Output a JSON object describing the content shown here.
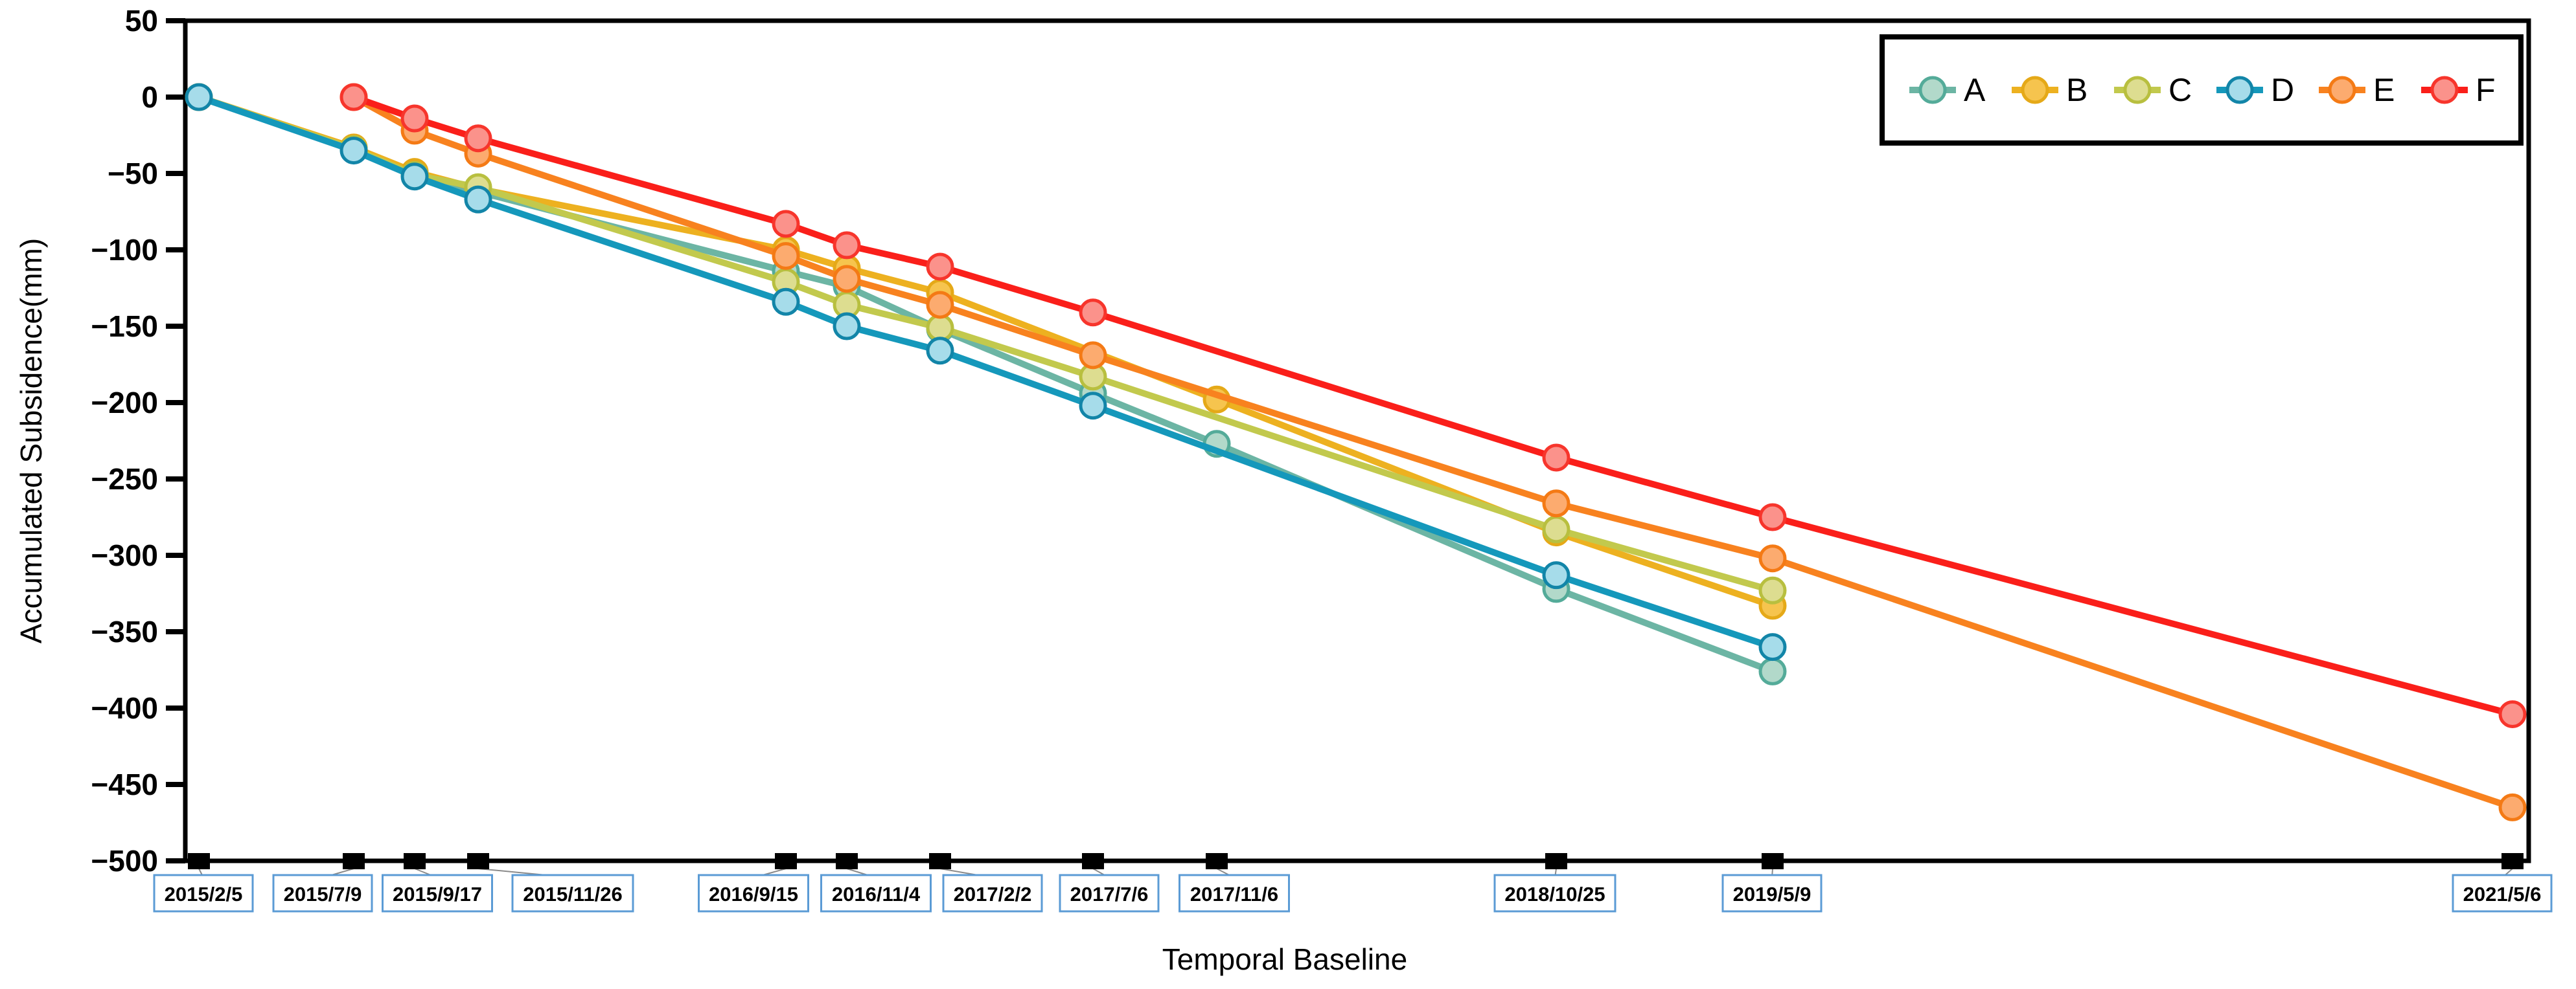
{
  "chart_data": {
    "type": "line",
    "title": "",
    "xlabel": "Temporal Baseline",
    "ylabel": "Accumulated Subsidence(mm)",
    "ylim": [
      -500,
      50
    ],
    "ytick_step": 50,
    "yticks": [
      50,
      0,
      -50,
      -100,
      -150,
      -200,
      -250,
      -300,
      -350,
      -400,
      -450,
      -500
    ],
    "grid": false,
    "legend_position": "top-right",
    "categories": [
      "2015/2/5",
      "2015/7/9",
      "2015/9/17",
      "2015/11/26",
      "2016/9/15",
      "2016/11/4",
      "2017/2/2",
      "2017/7/6",
      "2017/11/6",
      "2018/10/25",
      "2019/5/9",
      "2021/5/6"
    ],
    "x_days_from_start": [
      0,
      154,
      224,
      294,
      588,
      638,
      728,
      882,
      1005,
      1358,
      1554,
      2282
    ],
    "series": [
      {
        "name": "A",
        "line_color": "#6cb5a4",
        "marker_fill": "#b2d9ca",
        "marker_edge": "#54ab99",
        "values": [
          0,
          -34,
          -50,
          -62,
          -114,
          -124,
          -152,
          -194,
          -227,
          -322,
          -376,
          null
        ]
      },
      {
        "name": "B",
        "line_color": "#edb120",
        "marker_fill": "#f6c44e",
        "marker_edge": "#e5a918",
        "values": [
          0,
          -33,
          -49,
          -60,
          -100,
          -112,
          -128,
          null,
          -198,
          -285,
          -333,
          null
        ]
      },
      {
        "name": "C",
        "line_color": "#c2c94d",
        "marker_fill": "#dddd90",
        "marker_edge": "#b8bf3f",
        "values": [
          0,
          -34,
          -51,
          -59,
          -121,
          -136,
          -151,
          -183,
          null,
          -283,
          -323,
          null
        ]
      },
      {
        "name": "D",
        "line_color": "#1598bb",
        "marker_fill": "#a6dcea",
        "marker_edge": "#1285a8",
        "values": [
          0,
          -35,
          -52,
          -67,
          -134,
          -150,
          -166,
          -202,
          null,
          -313,
          -360,
          null
        ]
      },
      {
        "name": "E",
        "line_color": "#f8821f",
        "marker_fill": "#fcab6f",
        "marker_edge": "#f47a15",
        "values": [
          null,
          0,
          -22,
          -37,
          -104,
          -119,
          -136,
          -169,
          null,
          -266,
          -302,
          -465
        ]
      },
      {
        "name": "F",
        "line_color": "#fa1f1a",
        "marker_fill": "#fb928b",
        "marker_edge": "#f7352c",
        "values": [
          null,
          0,
          -14,
          -27,
          -83,
          -97,
          -111,
          -141,
          null,
          -236,
          -275,
          -404
        ]
      }
    ],
    "legend_labels": [
      "A",
      "B",
      "C",
      "D",
      "E",
      "F"
    ]
  }
}
